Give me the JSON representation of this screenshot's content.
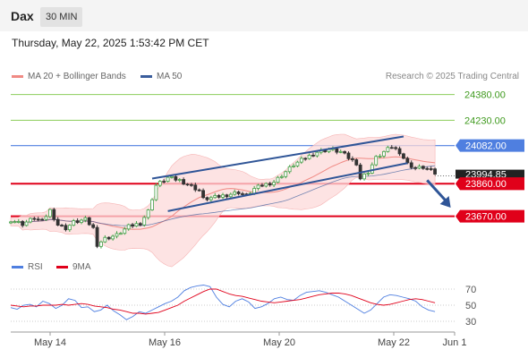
{
  "header": {
    "symbol": "Dax",
    "interval": "30 MIN",
    "datetime": "Thursday, May 22, 2025 1:53:42 PM CET"
  },
  "legend": {
    "ma20": "MA 20 + Bollinger Bands",
    "ma50": "MA 50",
    "credit": "Research © 2025 Trading Central"
  },
  "rsi_legend": {
    "rsi": "RSI",
    "ma": "9MA"
  },
  "colors": {
    "ma20": "#f08a84",
    "ma50": "#3a5d9c",
    "bands": "#fcd9d9",
    "up": "#43a047",
    "down": "#333333",
    "red": "#e0001a",
    "blue": "#4f7fe0",
    "green": "#8ccd5a",
    "dark": "#222222"
  },
  "chart_data": [
    {
      "type": "candlestick",
      "x_labels": [
        "May 14",
        "May 16",
        "May 20",
        "May 22",
        "Jun 1"
      ],
      "ylim": [
        23480,
        24430
      ],
      "last_price": "23994.85",
      "levels": [
        {
          "value": 24380,
          "label": "24380.00",
          "kind": "resistance-green"
        },
        {
          "value": 24230,
          "label": "24230.00",
          "kind": "resistance-green"
        },
        {
          "value": 24082,
          "label": "24082.00",
          "kind": "pivot-blue"
        },
        {
          "value": 23860,
          "label": "23860.00",
          "kind": "support-red"
        },
        {
          "value": 23670,
          "label": "23670.00",
          "kind": "support-red"
        }
      ],
      "close_path": [
        [
          0,
          23648
        ],
        [
          3,
          23625
        ],
        [
          6,
          23660
        ],
        [
          8,
          23640
        ],
        [
          10,
          23705
        ],
        [
          12,
          23620
        ],
        [
          14,
          23600
        ],
        [
          16,
          23635
        ],
        [
          19,
          23650
        ],
        [
          21,
          23600
        ],
        [
          22,
          23505
        ],
        [
          24,
          23540
        ],
        [
          27,
          23560
        ],
        [
          30,
          23610
        ],
        [
          33,
          23630
        ],
        [
          35,
          23700
        ],
        [
          37,
          23850
        ],
        [
          40,
          23895
        ],
        [
          43,
          23880
        ],
        [
          46,
          23845
        ],
        [
          48,
          23820
        ],
        [
          49,
          23770
        ],
        [
          52,
          23780
        ],
        [
          55,
          23795
        ],
        [
          58,
          23810
        ],
        [
          60,
          23790
        ],
        [
          62,
          23830
        ],
        [
          64,
          23850
        ],
        [
          67,
          23870
        ],
        [
          70,
          23930
        ],
        [
          72,
          23970
        ],
        [
          75,
          24010
        ],
        [
          78,
          24045
        ],
        [
          81,
          24060
        ],
        [
          84,
          24045
        ],
        [
          86,
          24010
        ],
        [
          88,
          23980
        ],
        [
          89,
          23890
        ],
        [
          91,
          23930
        ],
        [
          93,
          24010
        ],
        [
          95,
          24045
        ],
        [
          97,
          24075
        ],
        [
          99,
          24045
        ],
        [
          101,
          23975
        ],
        [
          103,
          23950
        ],
        [
          105,
          23955
        ],
        [
          107,
          23935
        ],
        [
          108,
          23920
        ]
      ],
      "trend_lines": [
        {
          "name": "upper-channel",
          "from": [
            36,
            23890
          ],
          "to": [
            100,
            24135
          ]
        },
        {
          "name": "lower-channel",
          "from": [
            40,
            23700
          ],
          "to": [
            101,
            23980
          ]
        }
      ],
      "forecast_arrow": {
        "from": [
          106,
          23880
        ],
        "to": [
          112,
          23720
        ]
      }
    },
    {
      "type": "line",
      "name": "RSI panel",
      "series": [
        {
          "name": "RSI",
          "values": [
            47,
            45,
            50,
            51,
            48,
            55,
            52,
            46,
            50,
            58,
            56,
            47,
            48,
            42,
            44,
            50,
            43,
            38,
            32,
            36,
            42,
            40,
            44,
            48,
            52,
            55,
            60,
            68,
            72,
            74,
            75,
            73,
            60,
            51,
            48,
            55,
            58,
            54,
            46,
            48,
            52,
            58,
            60,
            57,
            56,
            62,
            66,
            67,
            68,
            66,
            63,
            60,
            55,
            50,
            45,
            40,
            44,
            52,
            60,
            63,
            62,
            60,
            58,
            55,
            48,
            44,
            42
          ]
        },
        {
          "name": "9MA",
          "values": [
            50,
            49,
            48,
            49,
            49,
            50,
            50,
            50,
            51,
            50,
            51,
            52,
            51,
            49,
            48,
            47,
            45,
            44,
            42,
            40,
            40,
            39,
            40,
            41,
            44,
            47,
            50,
            55,
            59,
            63,
            67,
            70,
            70,
            67,
            64,
            62,
            61,
            59,
            57,
            55,
            54,
            53,
            54,
            55,
            56,
            57,
            59,
            61,
            63,
            64,
            65,
            65,
            64,
            62,
            59,
            56,
            53,
            51,
            50,
            51,
            53,
            55,
            57,
            58,
            57,
            55,
            53
          ]
        }
      ],
      "ylim": [
        20,
        80
      ],
      "reference_levels": [
        70,
        50,
        30
      ]
    }
  ]
}
